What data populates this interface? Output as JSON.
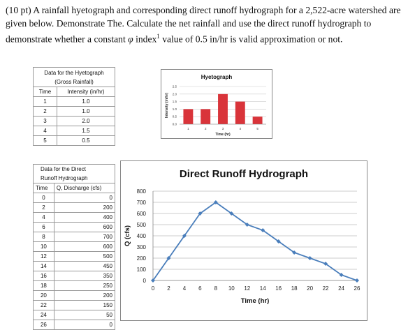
{
  "problem": {
    "prefix": "(10 pt) A rainfall hyetograph and corresponding direct runoff hydrograph for a 2,522-acre watershed are given below. Demonstrate The. Calculate the net rainfall and use the direct runoff hydrograph to demonstrate whether a constant ",
    "phi": "φ",
    "index_word": " index",
    "footnote": "1",
    "suffix": " value of 0.5 in/hr is valid approximation or not."
  },
  "hyeto_table": {
    "title_line1": "Data for the Hyetograph",
    "title_line2": "(Gross Rainfall)",
    "headers": [
      "Time",
      "Intensity (in/hr)"
    ],
    "rows": [
      [
        "1",
        "1.0"
      ],
      [
        "2",
        "1.0"
      ],
      [
        "3",
        "2.0"
      ],
      [
        "4",
        "1.5"
      ],
      [
        "5",
        "0.5"
      ]
    ]
  },
  "hydro_table": {
    "title_line1": "Data for the Direct",
    "title_line2": "Runoff Hydrograph",
    "headers": [
      "Time",
      "Q, Discharge (cfs)"
    ],
    "rows": [
      [
        "0",
        "0"
      ],
      [
        "2",
        "200"
      ],
      [
        "4",
        "400"
      ],
      [
        "6",
        "600"
      ],
      [
        "8",
        "700"
      ],
      [
        "10",
        "600"
      ],
      [
        "12",
        "500"
      ],
      [
        "14",
        "450"
      ],
      [
        "16",
        "350"
      ],
      [
        "18",
        "250"
      ],
      [
        "20",
        "200"
      ],
      [
        "22",
        "150"
      ],
      [
        "24",
        "50"
      ],
      [
        "26",
        "0"
      ]
    ]
  },
  "chart_data": [
    {
      "type": "bar",
      "title": "Hyetograph",
      "xlabel": "Time (hr)",
      "ylabel": "Intensity (in/hr)",
      "categories": [
        "1",
        "2",
        "3",
        "4",
        "5"
      ],
      "values": [
        1.0,
        1.0,
        2.0,
        1.5,
        0.5
      ],
      "ylim": [
        0,
        2.5
      ],
      "yticks": [
        "0.0",
        "0.5",
        "1.0",
        "1.5",
        "2.0",
        "2.5"
      ],
      "bar_color": "#d9343a",
      "grid": true
    },
    {
      "type": "line",
      "title": "Direct Runoff Hydrograph",
      "xlabel": "Time (hr)",
      "ylabel": "Q (cfs)",
      "x": [
        0,
        2,
        4,
        6,
        8,
        10,
        12,
        14,
        16,
        18,
        20,
        22,
        24,
        26
      ],
      "y": [
        0,
        200,
        400,
        600,
        700,
        600,
        500,
        450,
        350,
        250,
        200,
        150,
        50,
        0
      ],
      "xticks": [
        "0",
        "2",
        "4",
        "6",
        "8",
        "10",
        "12",
        "14",
        "16",
        "18",
        "20",
        "22",
        "24",
        "26"
      ],
      "yticks": [
        "0",
        "100",
        "200",
        "300",
        "400",
        "500",
        "600",
        "700",
        "800"
      ],
      "ylim": [
        0,
        800
      ],
      "xlim": [
        0,
        26
      ],
      "line_color": "#4a7ebb",
      "grid": true
    }
  ]
}
